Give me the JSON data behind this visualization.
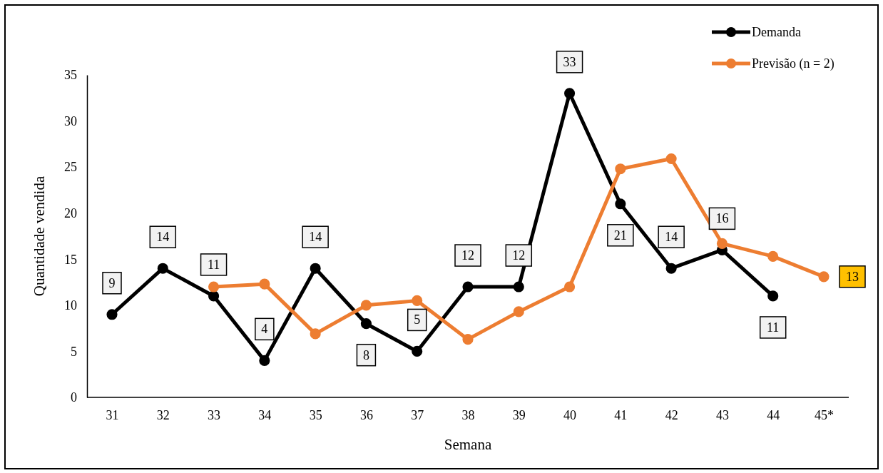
{
  "chart_data": {
    "type": "line",
    "xlabel": "Semana",
    "ylabel": "Quantidade vendida",
    "categories": [
      "31",
      "32",
      "33",
      "34",
      "35",
      "36",
      "37",
      "38",
      "39",
      "40",
      "41",
      "42",
      "43",
      "44",
      "45*"
    ],
    "ylim": [
      0,
      35
    ],
    "yticks": [
      0,
      5,
      10,
      15,
      20,
      25,
      30,
      35
    ],
    "grid": false,
    "legend": "top right",
    "marker": "circle",
    "line_style": "solid",
    "series": [
      {
        "name": "Demanda",
        "color": "#000000",
        "values": [
          9,
          14,
          11,
          4,
          14,
          8,
          5,
          12,
          12,
          33,
          21,
          14,
          16,
          11,
          null
        ],
        "value_labels": [
          "9",
          "14",
          "11",
          "4",
          "14",
          "8",
          "5",
          "12",
          "12",
          "33",
          "21",
          "14",
          "16",
          "11",
          null
        ]
      },
      {
        "name": "Previsão (n = 2)",
        "color": "#ed7d31",
        "values": [
          null,
          null,
          12,
          12.3,
          6.9,
          10,
          10.5,
          6.3,
          9.3,
          12,
          24.8,
          25.9,
          16.7,
          15.3,
          13.1
        ],
        "value_labels": [
          null,
          null,
          null,
          null,
          null,
          null,
          null,
          null,
          null,
          null,
          null,
          null,
          null,
          null,
          "13"
        ]
      }
    ]
  }
}
